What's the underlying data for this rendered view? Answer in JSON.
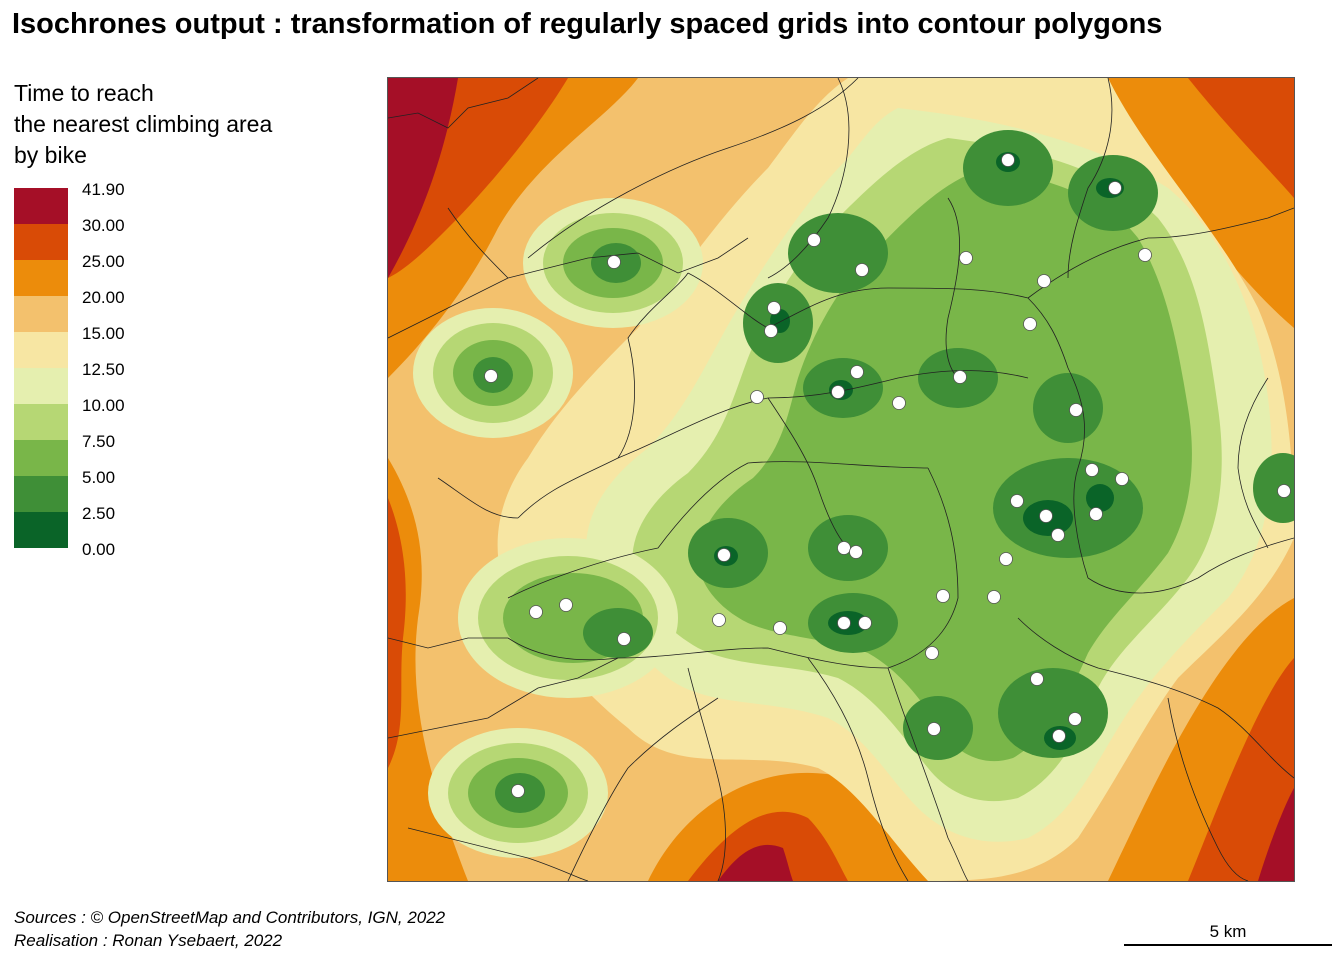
{
  "title": "Isochrones output : transformation of regularly spaced grids into contour polygons",
  "legend": {
    "title_lines": [
      "Time to reach",
      "the nearest climbing area",
      "by bike"
    ],
    "classes": [
      {
        "label": "41.90",
        "color": "#a50f27"
      },
      {
        "label": "30.00",
        "color": "#d94b06"
      },
      {
        "label": "25.00",
        "color": "#ec8c0b"
      },
      {
        "label": "20.00",
        "color": "#f3c16d"
      },
      {
        "label": "15.00",
        "color": "#f7e6a3"
      },
      {
        "label": "12.50",
        "color": "#e5efaf"
      },
      {
        "label": "10.00",
        "color": "#b6d774"
      },
      {
        "label": "7.50",
        "color": "#79b649"
      },
      {
        "label": "5.00",
        "color": "#3f8f37"
      },
      {
        "label": "2.50",
        "color": "#0a6428"
      },
      {
        "label": "0.00",
        "color": ""
      }
    ]
  },
  "map": {
    "climbing_area_color": "#ffffff",
    "boundary_color": "#222222"
  },
  "footer": {
    "sources": "Sources : © OpenStreetMap and Contributors, IGN, 2022",
    "realisation": "Realisation : Ronan Ysebaert, 2022"
  },
  "scale_bar": {
    "label": "5 km"
  }
}
